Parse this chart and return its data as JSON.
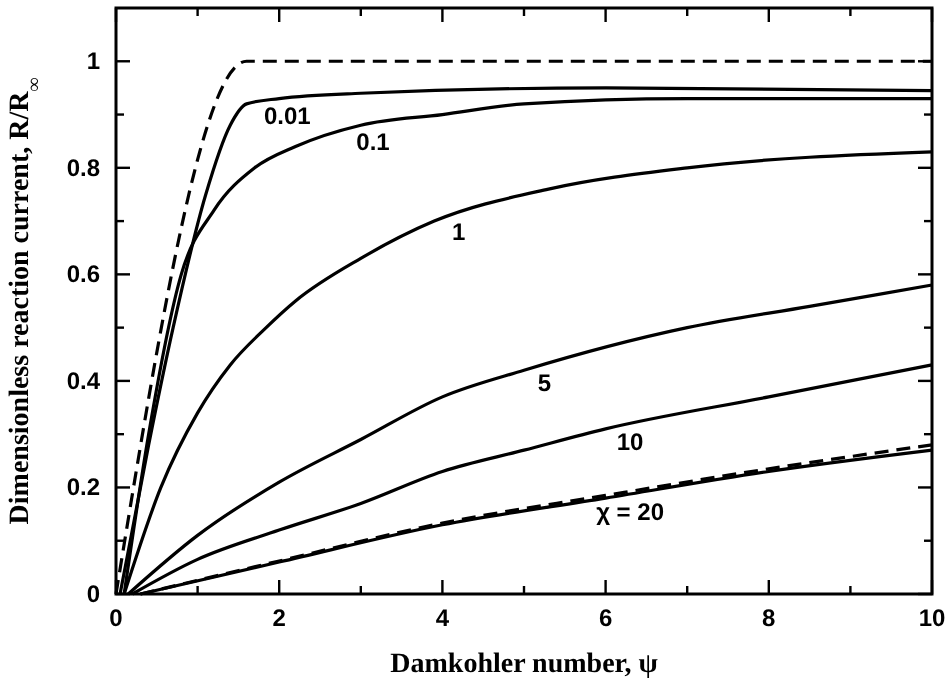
{
  "chart_data": {
    "type": "line",
    "xlabel": "Damkohler number, ψ",
    "ylabel": "Dimensionless reaction current, R/R$_{∞}$",
    "xlim": [
      0,
      10
    ],
    "ylim": [
      0,
      1.1
    ],
    "xticks": [
      0,
      {
        "value": 1,
        "label": null
      },
      2,
      {
        "value": 3,
        "label": null
      },
      4,
      {
        "value": 5,
        "label": null
      },
      6,
      {
        "value": 7,
        "label": null
      },
      8,
      {
        "value": 9,
        "label": null
      },
      10
    ],
    "yticks": [
      0,
      {
        "value": 0.1,
        "label": null
      },
      0.2,
      {
        "value": 0.3,
        "label": null
      },
      0.4,
      {
        "value": 0.5,
        "label": null
      },
      0.6,
      {
        "value": 0.7,
        "label": null
      },
      0.8,
      {
        "value": 0.9,
        "label": null
      },
      1
    ],
    "grid": false,
    "marker": "none",
    "series": [
      {
        "color": "#000000",
        "line_style": "dashed",
        "x": [
          0,
          1.6,
          3,
          5,
          7,
          10
        ],
        "values": [
          0,
          1,
          1,
          1,
          1,
          1
        ]
      },
      {
        "name": "0.01",
        "color": "#000000",
        "line_style": "solid",
        "x": [
          0.05,
          0.4,
          0.7,
          1.1,
          1.4,
          1.6,
          2,
          3,
          6,
          10
        ],
        "values": [
          0,
          0.28,
          0.5,
          0.75,
          0.88,
          0.92,
          0.93,
          0.94,
          0.95,
          0.945
        ]
      },
      {
        "name": "0.1",
        "color": "#000000",
        "line_style": "solid",
        "x": [
          0.1,
          0.4,
          0.8,
          1.2,
          1.7,
          2.2,
          3,
          4,
          5,
          7,
          10
        ],
        "values": [
          0,
          0.3,
          0.6,
          0.72,
          0.8,
          0.84,
          0.88,
          0.9,
          0.92,
          0.93,
          0.93
        ]
      },
      {
        "name": "1",
        "color": "#000000",
        "line_style": "solid",
        "x": [
          0.1,
          0.55,
          1,
          1.4,
          1.84,
          2.2,
          3,
          3.9,
          5.3,
          7,
          10
        ],
        "values": [
          0,
          0.2,
          0.34,
          0.43,
          0.5,
          0.55,
          0.63,
          0.7,
          0.76,
          0.8,
          0.83
        ]
      },
      {
        "name": "5",
        "color": "#000000",
        "line_style": "solid",
        "x": [
          0.15,
          1,
          2,
          3,
          4,
          5,
          7,
          8.5,
          10
        ],
        "values": [
          0,
          0.11,
          0.21,
          0.29,
          0.37,
          0.42,
          0.5,
          0.54,
          0.58
        ]
      },
      {
        "name": "10",
        "color": "#000000",
        "line_style": "solid",
        "x": [
          0.2,
          1,
          2,
          3,
          4,
          5,
          6,
          8,
          10
        ],
        "values": [
          0,
          0.065,
          0.12,
          0.17,
          0.23,
          0.27,
          0.31,
          0.37,
          0.43
        ]
      },
      {
        "name": "χ = 20",
        "color": "#000000",
        "line_style": "solid",
        "x": [
          0.3,
          2,
          4,
          6,
          8,
          10
        ],
        "values": [
          0,
          0.06,
          0.13,
          0.18,
          0.23,
          0.27
        ]
      },
      {
        "color": "#000000",
        "line_style": "dashed",
        "x": [
          0.3,
          2,
          4,
          6,
          8,
          10
        ],
        "values": [
          0,
          0.062,
          0.133,
          0.185,
          0.235,
          0.28
        ]
      }
    ]
  }
}
